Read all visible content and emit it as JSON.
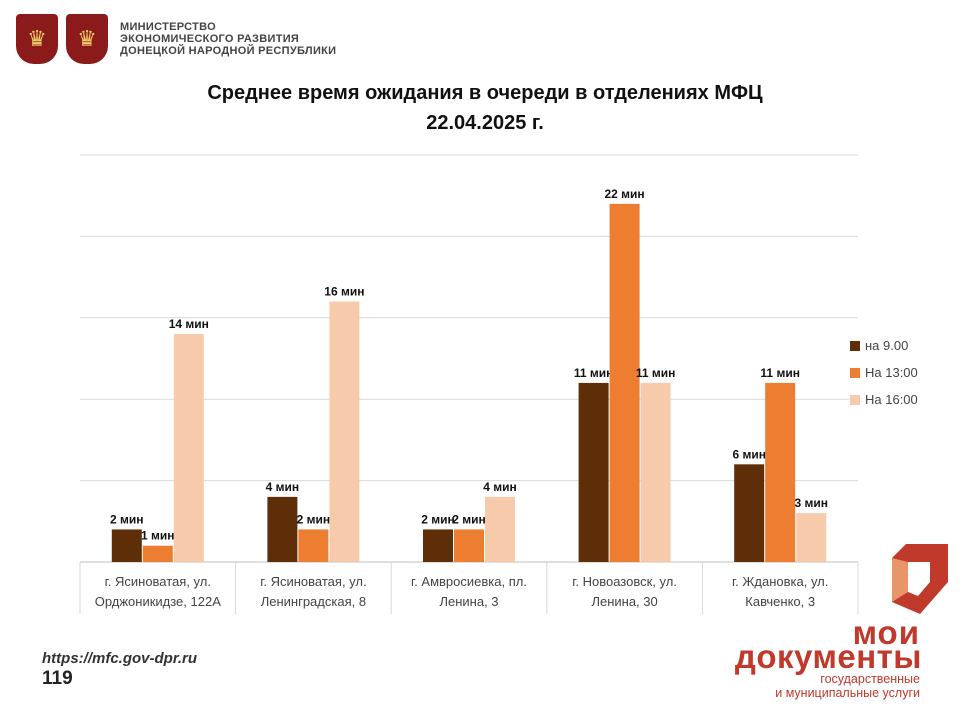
{
  "header": {
    "ministry_lines": [
      "МИНИСТЕРСТВО",
      "ЭКОНОМИЧЕСКОГО РАЗВИТИЯ",
      "ДОНЕЦКОЙ НАРОДНОЙ РЕСПУБЛИКИ"
    ]
  },
  "footer": {
    "url": "https://mfc.gov-dpr.ru",
    "page_number": "119"
  },
  "logo": {
    "line1": "мои",
    "line2": "документы",
    "sub1": "государственные",
    "sub2": "и муниципальные услуги"
  },
  "colors": {
    "series1": "#5e2e09",
    "series2": "#ed7d31",
    "series3": "#f7caac",
    "grid": "#d9d9d9",
    "emblem": "#8b1a1a",
    "brand": "#c0392b"
  },
  "chart_data": {
    "type": "bar",
    "title": "Среднее время ожидания в очереди в отделениях МФЦ",
    "subtitle": "22.04.2025   г.",
    "categories": [
      [
        "г. Ясиноватая, ул.",
        "Орджоникидзе, 122А"
      ],
      [
        "г. Ясиноватая, ул.",
        "Ленинградская, 8"
      ],
      [
        "г. Амвросиевка, пл.",
        "Ленина, 3"
      ],
      [
        "г. Новоазовск, ул.",
        "Ленина, 30"
      ],
      [
        "г. Ждановка, ул.",
        "Кавченко, 3"
      ]
    ],
    "series": [
      {
        "name": "на 9.00",
        "values": [
          2,
          4,
          2,
          11,
          6
        ],
        "labels": [
          "2 мин",
          "4 мин",
          "2 мин",
          "11 мин",
          "6 мин"
        ]
      },
      {
        "name": "На 13:00",
        "values": [
          1,
          2,
          2,
          22,
          11
        ],
        "labels": [
          "1 мин",
          "2  мин",
          "2 мин",
          "22 мин",
          "11 мин"
        ]
      },
      {
        "name": "На 16:00",
        "values": [
          14,
          16,
          4,
          11,
          3
        ],
        "labels": [
          "14 мин",
          "16 мин",
          "4 мин",
          "11 мин",
          "3 мин"
        ]
      }
    ],
    "ylim": [
      0,
      25
    ],
    "grid": true,
    "legend": "right"
  }
}
